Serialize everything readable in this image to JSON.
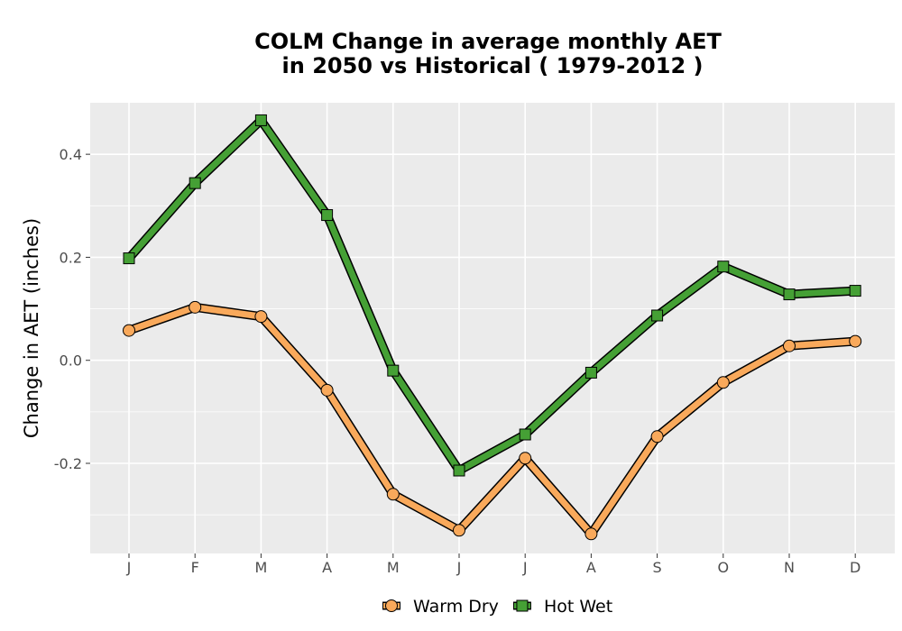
{
  "chart_data": {
    "type": "line",
    "title_line1": "COLM  Change in average monthly AET",
    "title_line2": "in 2050 vs Historical ( 1979-2012 )",
    "xlabel": "",
    "ylabel": "Change in AET (inches)",
    "categories": [
      "J",
      "F",
      "M",
      "A",
      "M",
      "J",
      "J",
      "A",
      "S",
      "O",
      "N",
      "D"
    ],
    "y_ticks": [
      -0.2,
      0.0,
      0.2,
      0.4
    ],
    "y_tick_labels": [
      "-0.2",
      "0.0",
      "0.2",
      "0.4"
    ],
    "ylim": [
      -0.375,
      0.5
    ],
    "grid": true,
    "legend_position": "bottom",
    "series": [
      {
        "name": "Warm Dry",
        "marker": "circle",
        "color": "#F9A95B",
        "values": [
          0.058,
          0.103,
          0.085,
          -0.058,
          -0.26,
          -0.33,
          -0.19,
          -0.337,
          -0.148,
          -0.043,
          0.028,
          0.037
        ]
      },
      {
        "name": "Hot Wet",
        "marker": "square",
        "color": "#45A035",
        "values": [
          0.198,
          0.344,
          0.466,
          0.282,
          -0.02,
          -0.214,
          -0.144,
          -0.024,
          0.087,
          0.182,
          0.128,
          0.135
        ]
      }
    ]
  }
}
